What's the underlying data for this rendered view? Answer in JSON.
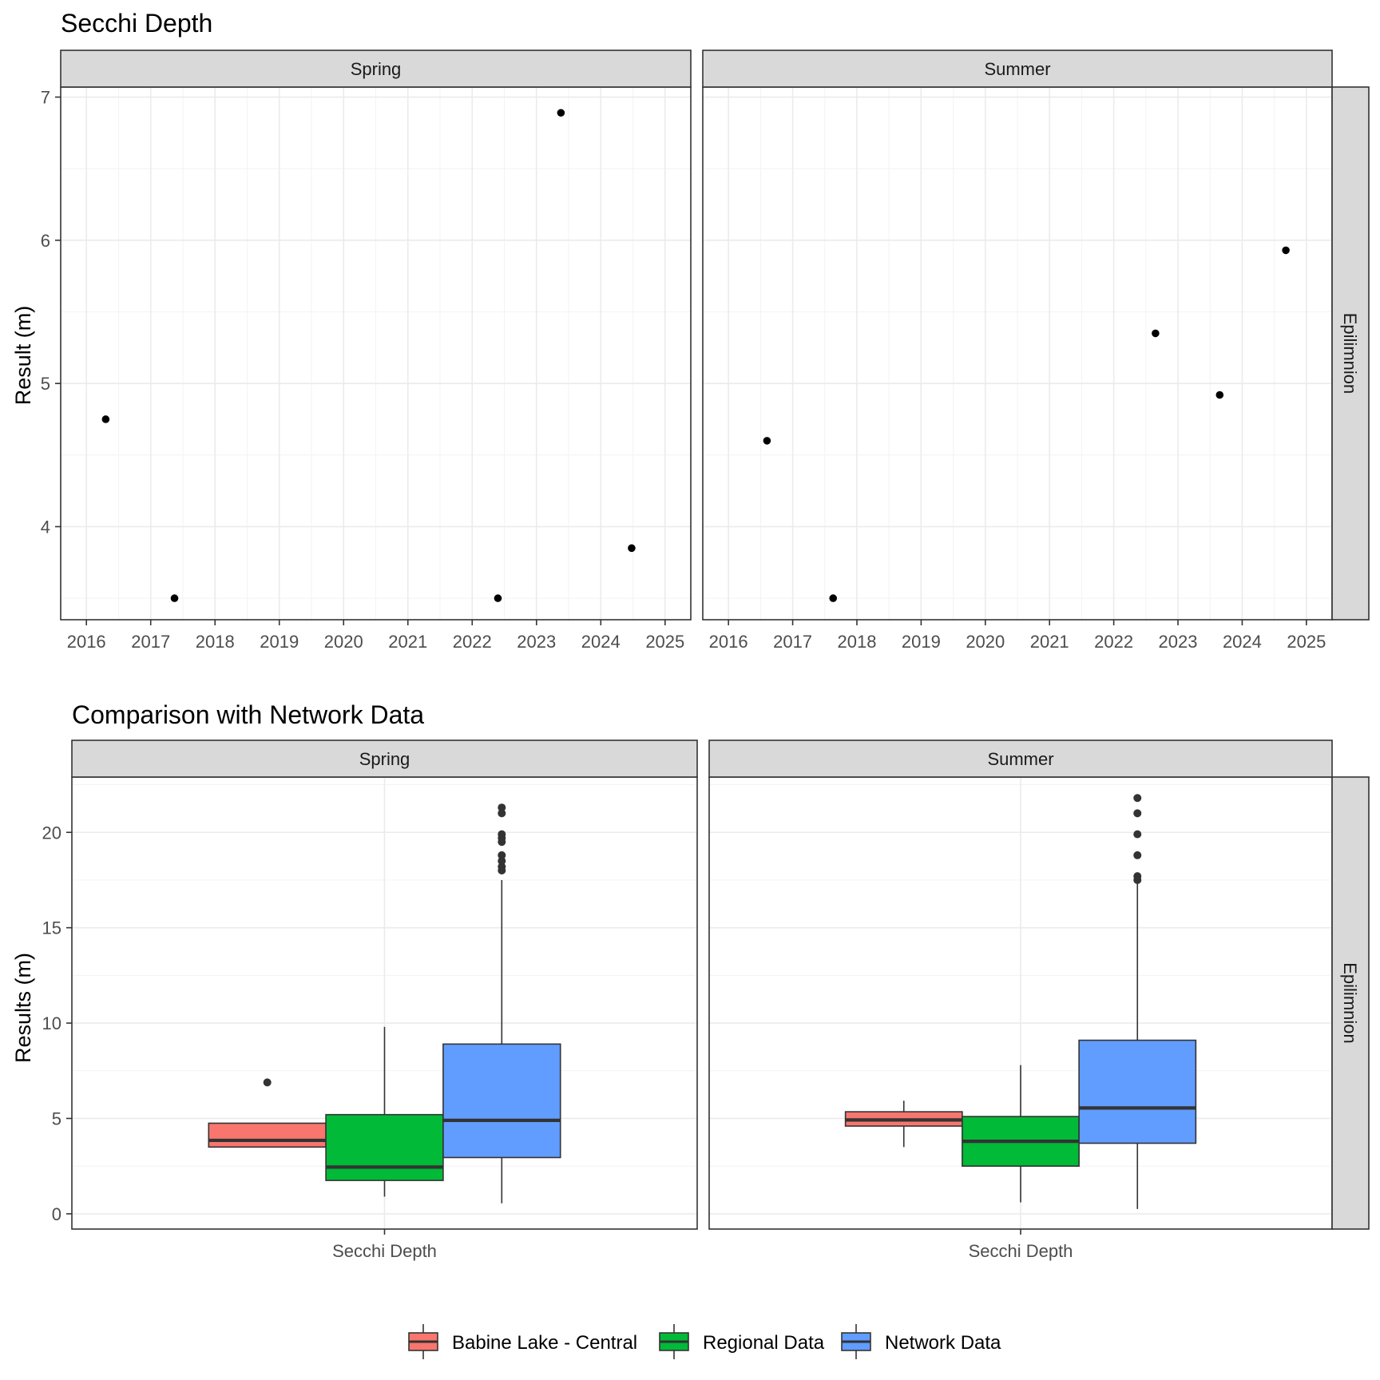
{
  "chart_data": [
    {
      "type": "scatter",
      "title": "Secchi Depth",
      "ylabel": "Result (m)",
      "ylim": [
        3.35,
        7.07
      ],
      "yticks": [
        4,
        5,
        6,
        7
      ],
      "xlim": [
        2015.6,
        2025.4
      ],
      "xticks": [
        2016,
        2017,
        2018,
        2019,
        2020,
        2021,
        2022,
        2023,
        2024,
        2025
      ],
      "grid": true,
      "row_strip": "Epilimnion",
      "facets": [
        {
          "name": "Spring",
          "points": [
            {
              "x": 2016.3,
              "y": 4.75
            },
            {
              "x": 2017.37,
              "y": 3.5
            },
            {
              "x": 2022.4,
              "y": 3.5
            },
            {
              "x": 2023.38,
              "y": 6.89
            },
            {
              "x": 2024.48,
              "y": 3.85
            }
          ]
        },
        {
          "name": "Summer",
          "points": [
            {
              "x": 2016.6,
              "y": 4.6
            },
            {
              "x": 2017.63,
              "y": 3.5
            },
            {
              "x": 2022.65,
              "y": 5.35
            },
            {
              "x": 2023.65,
              "y": 4.92
            },
            {
              "x": 2024.68,
              "y": 5.93
            }
          ]
        }
      ]
    },
    {
      "type": "boxplot",
      "title": "Comparison with Network Data",
      "ylabel": "Results (m)",
      "xlabel": "Secchi Depth",
      "ylim": [
        -0.8,
        22.9
      ],
      "yticks": [
        0,
        5,
        10,
        15,
        20
      ],
      "grid": true,
      "row_strip": "Epilimnion",
      "legend": {
        "position": "bottom",
        "entries": [
          {
            "name": "Babine Lake - Central",
            "color": "#F8766D"
          },
          {
            "name": "Regional Data",
            "color": "#00BA38"
          },
          {
            "name": "Network Data",
            "color": "#619CFF"
          }
        ]
      },
      "facets": [
        {
          "name": "Spring",
          "boxes": [
            {
              "group": "Babine Lake - Central",
              "min": 3.5,
              "q1": 3.5,
              "median": 3.85,
              "q3": 4.75,
              "max": 4.75,
              "outliers": [
                6.89
              ]
            },
            {
              "group": "Regional Data",
              "min": 0.9,
              "q1": 1.75,
              "median": 2.45,
              "q3": 5.2,
              "max": 9.8,
              "outliers": []
            },
            {
              "group": "Network Data",
              "min": 0.55,
              "q1": 2.95,
              "median": 4.9,
              "q3": 8.9,
              "max": 17.5,
              "outliers": [
                18.0,
                18.2,
                18.5,
                18.8,
                19.5,
                19.7,
                19.9,
                21.0,
                21.3
              ]
            }
          ]
        },
        {
          "name": "Summer",
          "boxes": [
            {
              "group": "Babine Lake - Central",
              "min": 3.5,
              "q1": 4.6,
              "median": 4.92,
              "q3": 5.35,
              "max": 5.93,
              "outliers": []
            },
            {
              "group": "Regional Data",
              "min": 0.6,
              "q1": 2.5,
              "median": 3.8,
              "q3": 5.1,
              "max": 7.8,
              "outliers": []
            },
            {
              "group": "Network Data",
              "min": 0.25,
              "q1": 3.7,
              "median": 5.55,
              "q3": 9.1,
              "max": 17.3,
              "outliers": [
                17.5,
                17.7,
                18.8,
                19.9,
                21.0,
                21.8
              ]
            }
          ]
        }
      ]
    }
  ]
}
